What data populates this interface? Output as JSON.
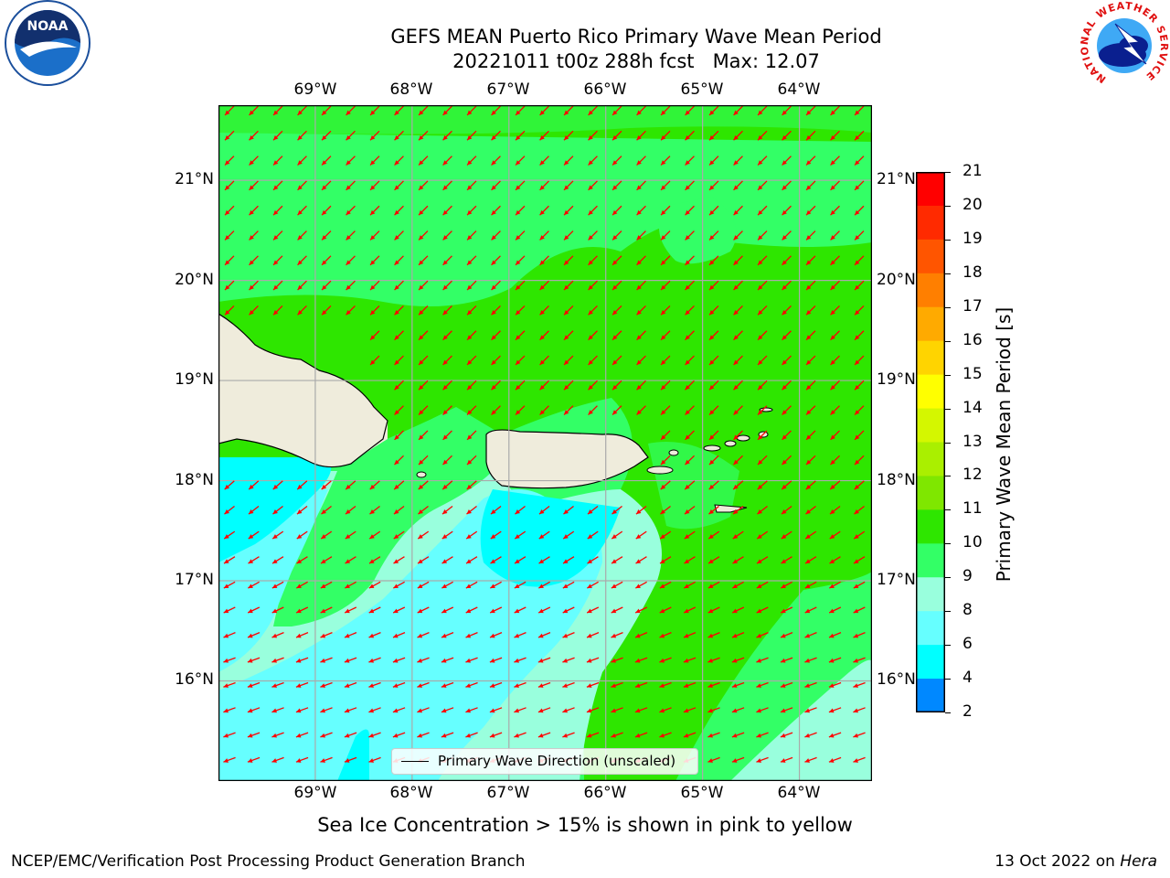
{
  "title": {
    "line1": "GEFS MEAN Puerto Rico Primary Wave Mean Period",
    "line2": "20221011 t00z 288h fcst   Max: 12.07"
  },
  "logos": {
    "left": {
      "icon": "noaa-logo-icon",
      "text": "NOAA"
    },
    "right": {
      "icon": "national-weather-service-logo-icon",
      "text": "NATIONAL WEATHER SERVICE"
    }
  },
  "map": {
    "lon_labels": [
      "69°W",
      "68°W",
      "67°W",
      "66°W",
      "65°W",
      "64°W"
    ],
    "lat_labels": [
      "21°N",
      "20°N",
      "19°N",
      "18°N",
      "17°N",
      "16°N"
    ],
    "extent": {
      "lon_min": -70.0,
      "lon_max": -63.25,
      "lat_min": 15.0,
      "lat_max": 21.75
    },
    "land_color": "#efecdc",
    "arrow_color": "#ff0000",
    "grid_color": "#aaaaaa",
    "features": [
      "Hispaniola",
      "Puerto Rico",
      "Virgin Islands"
    ]
  },
  "colorbar": {
    "title": "Primary Wave Mean Period [s]",
    "labels": [
      "21",
      "20",
      "19",
      "18",
      "17",
      "16",
      "15",
      "14",
      "13",
      "12",
      "11",
      "10",
      "9",
      "8",
      "6",
      "4",
      "2"
    ],
    "colors": [
      "#ff0000",
      "#ff2a00",
      "#ff5500",
      "#ff7f00",
      "#ffaa00",
      "#ffd400",
      "#ffff00",
      "#d4f700",
      "#aaef00",
      "#7fe700",
      "#2ee600",
      "#33ff66",
      "#99ffdd",
      "#66ffff",
      "#00ffff",
      "#0088ff",
      "#0000ff"
    ]
  },
  "legend": {
    "label": "Primary Wave Direction (unscaled)"
  },
  "footnote": "Sea Ice Concentration > 15% is shown in pink to yellow",
  "credits": {
    "left": "NCEP/EMC/Verification Post Processing Product Generation Branch",
    "right_prefix": "13 Oct 2022 on ",
    "right_host": "Hera"
  }
}
